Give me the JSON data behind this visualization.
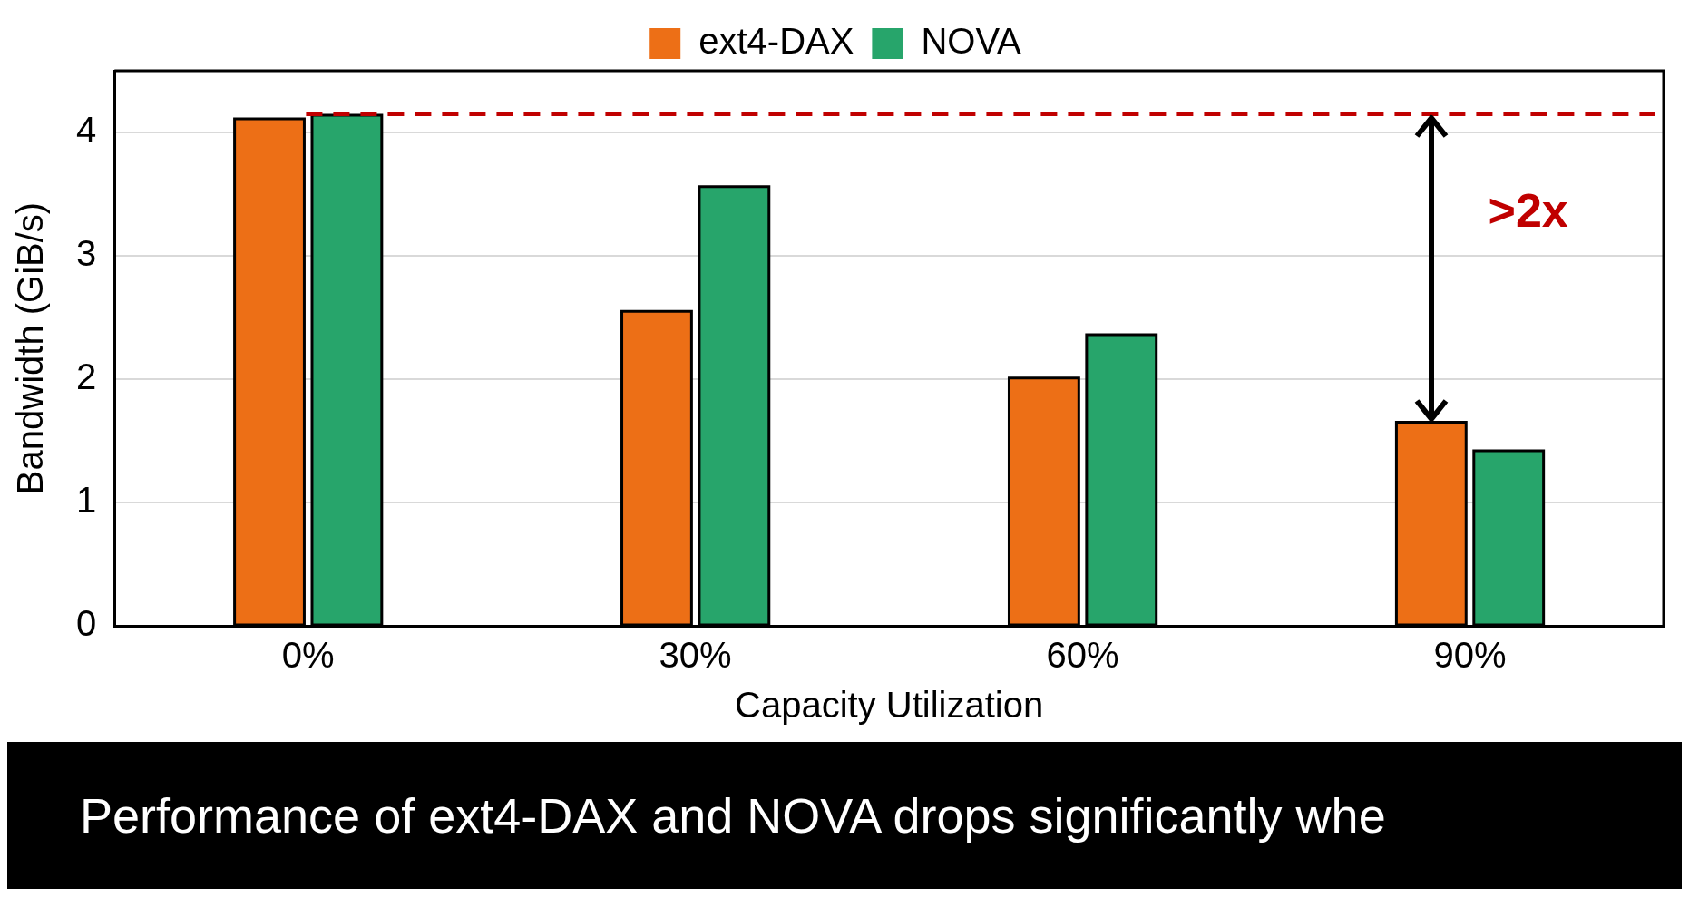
{
  "chart_data": {
    "type": "bar",
    "xlabel": "Capacity Utilization",
    "ylabel": "Bandwidth (GiB/s)",
    "categories": [
      "0%",
      "30%",
      "60%",
      "90%"
    ],
    "series": [
      {
        "name": "ext4-DAX",
        "color": "#ed6f16",
        "values": [
          4.11,
          2.55,
          2.01,
          1.65
        ]
      },
      {
        "name": "NOVA",
        "color": "#27a56b",
        "values": [
          4.14,
          3.56,
          2.36,
          1.42
        ]
      }
    ],
    "ylim": [
      0,
      4.5
    ],
    "yticks": [
      0,
      1,
      2,
      3,
      4
    ],
    "grid": "y",
    "legend": "top",
    "ref_lines": [
      {
        "axis": "y",
        "value": 4.15,
        "color": "#c00000",
        "line_style": "dashed"
      }
    ],
    "annotations": [
      ">2x",
      "Performance of ext4-DAX and NOVA drops significantly whe"
    ]
  }
}
